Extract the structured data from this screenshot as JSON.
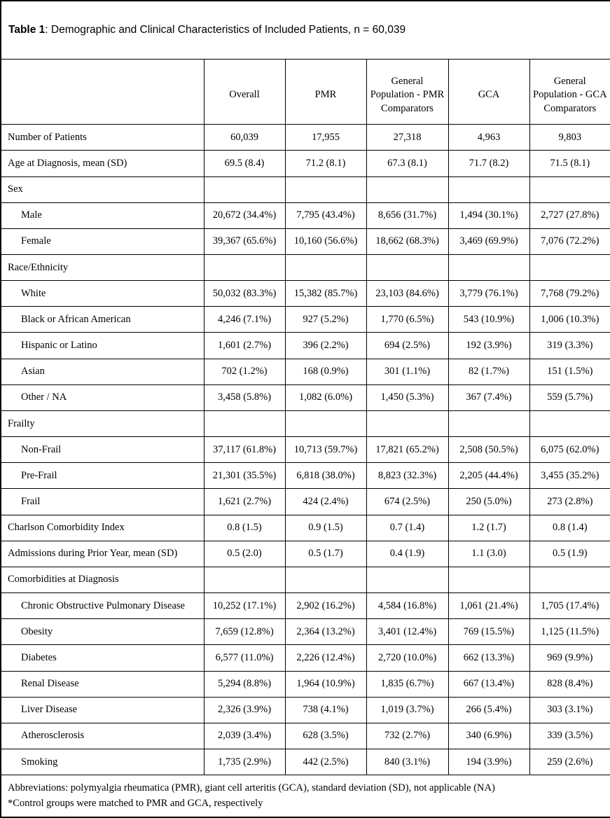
{
  "title": {
    "bold": "Table 1",
    "rest": ": Demographic and Clinical Characteristics of Included Patients, n = 60,039"
  },
  "table": {
    "columns": [
      "Overall",
      "PMR",
      "General Population - PMR Comparators",
      "GCA",
      "General Population - GCA Comparators"
    ],
    "rows": [
      {
        "label": "Number of Patients",
        "indent": false,
        "values": [
          "60,039",
          "17,955",
          "27,318",
          "4,963",
          "9,803"
        ]
      },
      {
        "label": "Age at Diagnosis, mean (SD)",
        "indent": false,
        "values": [
          "69.5 (8.4)",
          "71.2 (8.1)",
          "67.3 (8.1)",
          "71.7 (8.2)",
          "71.5 (8.1)"
        ]
      },
      {
        "label": "Sex",
        "indent": false,
        "values": [
          "",
          "",
          "",
          "",
          ""
        ]
      },
      {
        "label": "Male",
        "indent": true,
        "values": [
          "20,672 (34.4%)",
          "7,795 (43.4%)",
          "8,656 (31.7%)",
          "1,494 (30.1%)",
          "2,727 (27.8%)"
        ]
      },
      {
        "label": "Female",
        "indent": true,
        "values": [
          "39,367 (65.6%)",
          "10,160 (56.6%)",
          "18,662 (68.3%)",
          "3,469 (69.9%)",
          "7,076 (72.2%)"
        ]
      },
      {
        "label": "Race/Ethnicity",
        "indent": false,
        "values": [
          "",
          "",
          "",
          "",
          ""
        ]
      },
      {
        "label": "White",
        "indent": true,
        "values": [
          "50,032 (83.3%)",
          "15,382 (85.7%)",
          "23,103 (84.6%)",
          "3,779 (76.1%)",
          "7,768 (79.2%)"
        ]
      },
      {
        "label": "Black or African American",
        "indent": true,
        "values": [
          "4,246 (7.1%)",
          "927 (5.2%)",
          "1,770 (6.5%)",
          "543 (10.9%)",
          "1,006 (10.3%)"
        ]
      },
      {
        "label": "Hispanic or Latino",
        "indent": true,
        "values": [
          "1,601 (2.7%)",
          "396 (2.2%)",
          "694 (2.5%)",
          "192 (3.9%)",
          "319 (3.3%)"
        ]
      },
      {
        "label": "Asian",
        "indent": true,
        "values": [
          "702 (1.2%)",
          "168 (0.9%)",
          "301 (1.1%)",
          "82 (1.7%)",
          "151 (1.5%)"
        ]
      },
      {
        "label": "Other / NA",
        "indent": true,
        "values": [
          "3,458 (5.8%)",
          "1,082 (6.0%)",
          "1,450 (5.3%)",
          "367 (7.4%)",
          "559 (5.7%)"
        ]
      },
      {
        "label": "Frailty",
        "indent": false,
        "values": [
          "",
          "",
          "",
          "",
          ""
        ]
      },
      {
        "label": "Non-Frail",
        "indent": true,
        "values": [
          "37,117 (61.8%)",
          "10,713 (59.7%)",
          "17,821 (65.2%)",
          "2,508 (50.5%)",
          "6,075 (62.0%)"
        ]
      },
      {
        "label": "Pre-Frail",
        "indent": true,
        "values": [
          "21,301 (35.5%)",
          "6,818 (38.0%)",
          "8,823 (32.3%)",
          "2,205 (44.4%)",
          "3,455 (35.2%)"
        ]
      },
      {
        "label": "Frail",
        "indent": true,
        "values": [
          "1,621 (2.7%)",
          "424 (2.4%)",
          "674 (2.5%)",
          "250 (5.0%)",
          "273 (2.8%)"
        ]
      },
      {
        "label": "Charlson Comorbidity Index",
        "indent": false,
        "values": [
          "0.8 (1.5)",
          "0.9 (1.5)",
          "0.7 (1.4)",
          "1.2 (1.7)",
          "0.8 (1.4)"
        ]
      },
      {
        "label": "Admissions during Prior Year, mean (SD)",
        "indent": false,
        "values": [
          "0.5 (2.0)",
          "0.5 (1.7)",
          "0.4 (1.9)",
          "1.1 (3.0)",
          "0.5 (1.9)"
        ]
      },
      {
        "label": "Comorbidities at Diagnosis",
        "indent": false,
        "values": [
          "",
          "",
          "",
          "",
          ""
        ]
      },
      {
        "label": "Chronic Obstructive Pulmonary Disease",
        "indent": true,
        "values": [
          "10,252 (17.1%)",
          "2,902 (16.2%)",
          "4,584 (16.8%)",
          "1,061 (21.4%)",
          "1,705 (17.4%)"
        ]
      },
      {
        "label": "Obesity",
        "indent": true,
        "values": [
          "7,659 (12.8%)",
          "2,364 (13.2%)",
          "3,401 (12.4%)",
          "769 (15.5%)",
          "1,125 (11.5%)"
        ]
      },
      {
        "label": "Diabetes",
        "indent": true,
        "values": [
          "6,577 (11.0%)",
          "2,226 (12.4%)",
          "2,720 (10.0%)",
          "662 (13.3%)",
          "969 (9.9%)"
        ]
      },
      {
        "label": "Renal Disease",
        "indent": true,
        "values": [
          "5,294 (8.8%)",
          "1,964 (10.9%)",
          "1,835 (6.7%)",
          "667 (13.4%)",
          "828 (8.4%)"
        ]
      },
      {
        "label": "Liver Disease",
        "indent": true,
        "values": [
          "2,326 (3.9%)",
          "738 (4.1%)",
          "1,019 (3.7%)",
          "266 (5.4%)",
          "303 (3.1%)"
        ]
      },
      {
        "label": "Atherosclerosis",
        "indent": true,
        "values": [
          "2,039 (3.4%)",
          "628 (3.5%)",
          "732 (2.7%)",
          "340 (6.9%)",
          "339 (3.5%)"
        ]
      },
      {
        "label": "Smoking",
        "indent": true,
        "values": [
          "1,735 (2.9%)",
          "442 (2.5%)",
          "840 (3.1%)",
          "194 (3.9%)",
          "259 (2.6%)"
        ]
      }
    ]
  },
  "footnotes": [
    "Abbreviations: polymyalgia rheumatica (PMR), giant cell arteritis (GCA), standard deviation (SD), not applicable (NA)",
    "*Control groups were matched to PMR and GCA, respectively"
  ],
  "colors": {
    "text": "#000000",
    "border": "#000000",
    "background": "#ffffff"
  }
}
